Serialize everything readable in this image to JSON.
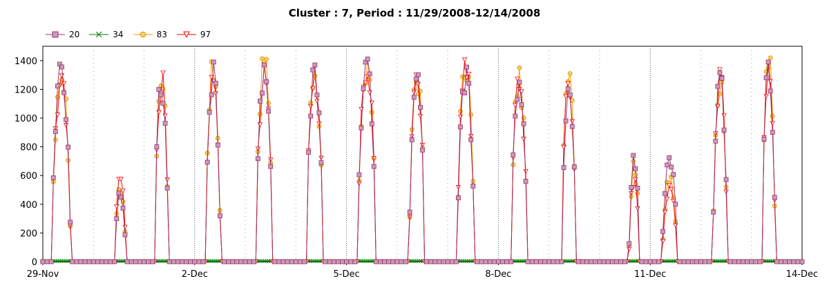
{
  "colors": {
    "s20_line": "#993366",
    "s20_marker_fill": "#cc99bb",
    "s34": "#008000",
    "s83_line": "#ff9900",
    "s83_marker_fill": "#ffcc66",
    "s97": "#ff0000",
    "grid": "#999999",
    "axis": "#000000"
  },
  "chart_data": {
    "type": "line",
    "title": "Cluster : 7, Period : 11/29/2008-12/14/2008",
    "xlabel": "",
    "ylabel": "",
    "ylim": [
      0,
      1500
    ],
    "yticks": [
      0,
      200,
      400,
      600,
      800,
      1000,
      1200,
      1400
    ],
    "x_range_days": [
      0,
      15
    ],
    "xtick_labels": [
      "29-Nov",
      "2-Dec",
      "5-Dec",
      "8-Dec",
      "11-Dec",
      "14-Dec"
    ],
    "xtick_days": [
      0,
      3,
      6,
      9,
      12,
      15
    ],
    "grid": "vertical dotted lines every day, denser dotted lines at labeled ticks",
    "legend_position": "top-left",
    "series": [
      {
        "name": "20",
        "marker": "square",
        "daily_peak": [
          1380,
          500,
          1330,
          1390,
          1370,
          1370,
          1430,
          1400,
          1400,
          1250,
          1230,
          740,
          770,
          1350,
          1390
        ]
      },
      {
        "name": "34",
        "marker": "x",
        "daily_peak": [
          5,
          5,
          5,
          5,
          5,
          5,
          5,
          5,
          5,
          5,
          5,
          5,
          5,
          5,
          5
        ]
      },
      {
        "name": "83",
        "marker": "circle",
        "daily_peak": [
          1410,
          540,
          1320,
          1410,
          1430,
          1350,
          1410,
          1380,
          1480,
          1350,
          1310,
          700,
          600,
          1330,
          1450
        ]
      },
      {
        "name": "97",
        "marker": "triangle-down",
        "daily_peak": [
          1360,
          620,
          1320,
          1360,
          1380,
          1360,
          1400,
          1380,
          1420,
          1320,
          1300,
          610,
          560,
          1340,
          1400
        ]
      }
    ],
    "daily_windows": [
      {
        "day": 0,
        "start": 0.18,
        "end": 0.55
      },
      {
        "day": 1,
        "start": 0.42,
        "end": 0.64
      },
      {
        "day": 2,
        "start": 0.21,
        "end": 0.48
      },
      {
        "day": 3,
        "start": 0.21,
        "end": 0.51
      },
      {
        "day": 4,
        "start": 0.21,
        "end": 0.54
      },
      {
        "day": 5,
        "start": 0.21,
        "end": 0.54
      },
      {
        "day": 6,
        "start": 0.22,
        "end": 0.58
      },
      {
        "day": 7,
        "start": 0.24,
        "end": 0.54
      },
      {
        "day": 8,
        "start": 0.19,
        "end": 0.52
      },
      {
        "day": 9,
        "start": 0.25,
        "end": 0.57
      },
      {
        "day": 10,
        "start": 0.25,
        "end": 0.53
      },
      {
        "day": 11,
        "start": 0.58,
        "end": 0.79
      },
      {
        "day": 12,
        "start": 0.24,
        "end": 0.53
      },
      {
        "day": 13,
        "start": 0.24,
        "end": 0.52
      },
      {
        "day": 14,
        "start": 0.21,
        "end": 0.47
      }
    ]
  },
  "legend": {
    "items": [
      {
        "label": "20"
      },
      {
        "label": "34"
      },
      {
        "label": "83"
      },
      {
        "label": "97"
      }
    ]
  }
}
